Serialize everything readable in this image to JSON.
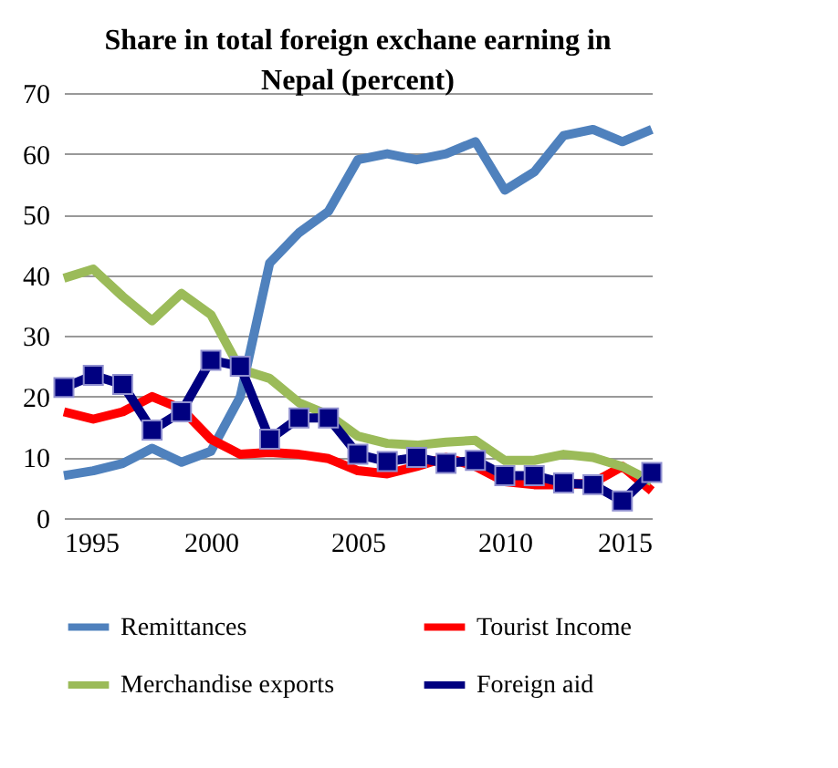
{
  "chart_data": {
    "type": "line",
    "title": "Share in total foreign exchane earning in\nNepal (percent)",
    "x": [
      1995,
      1996,
      1997,
      1998,
      1999,
      2000,
      2001,
      2002,
      2003,
      2004,
      2005,
      2006,
      2007,
      2008,
      2009,
      2010,
      2011,
      2012,
      2013,
      2014,
      2015
    ],
    "series": [
      {
        "name": "Remittances",
        "color": "#4f81bd",
        "values": [
          7,
          7.8,
          9,
          11.5,
          9.2,
          11,
          20,
          42,
          47,
          50.5,
          59,
          60,
          59,
          60,
          62,
          54,
          57,
          63,
          64,
          62,
          64
        ]
      },
      {
        "name": "Tourist Income",
        "color": "#ff0000",
        "values": [
          17.5,
          16.3,
          17.5,
          20,
          18,
          13,
          10.5,
          10.8,
          10.5,
          9.8,
          7.8,
          7.3,
          8.5,
          10,
          8.5,
          6,
          5.5,
          5.5,
          5.8,
          8.5,
          4.5
        ]
      },
      {
        "name": "Merchandise exports",
        "color": "#9bbb59",
        "values": [
          39.5,
          41,
          36.5,
          32.5,
          37,
          33.5,
          24.5,
          23,
          19,
          17,
          13.5,
          12.3,
          12,
          12.5,
          12.8,
          9.5,
          9.5,
          10.5,
          10,
          8.5,
          6
        ]
      },
      {
        "name": "Foreign aid",
        "color": "#000080",
        "marker": "square",
        "values": [
          21.5,
          23.5,
          22,
          14.5,
          17.5,
          26,
          25,
          13,
          16.5,
          16.5,
          10.5,
          9.3,
          10,
          9,
          9.5,
          7,
          7,
          5.8,
          5.5,
          2.8,
          7.5
        ]
      }
    ],
    "xlim": [
      1995,
      2015
    ],
    "xticks": [
      1995,
      2000,
      2005,
      2010,
      2015
    ],
    "ylim": [
      0,
      70
    ],
    "yticks": [
      0,
      10,
      20,
      30,
      40,
      50,
      60,
      70
    ],
    "grid": "y",
    "legend": "bottom"
  }
}
